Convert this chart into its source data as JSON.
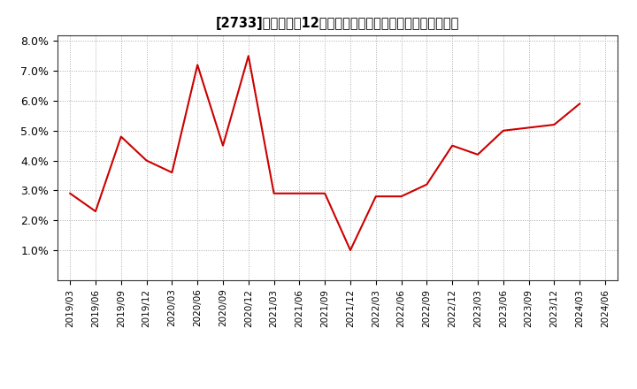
{
  "title": "[2733]　売上高の12か月移動合計の対前年同期増減率の推移",
  "line_color": "#cc0000",
  "background_color": "#ffffff",
  "plot_bg_color": "#ffffff",
  "grid_color": "#aaaaaa",
  "ylim": [
    0.0,
    0.082
  ],
  "yticks": [
    0.01,
    0.02,
    0.03,
    0.04,
    0.05,
    0.06,
    0.07,
    0.08
  ],
  "ytick_labels": [
    "1.0%",
    "2.0%",
    "3.0%",
    "4.0%",
    "5.0%",
    "6.0%",
    "7.0%",
    "8.0%"
  ],
  "dates": [
    "2019/03",
    "2019/06",
    "2019/09",
    "2019/12",
    "2020/03",
    "2020/06",
    "2020/09",
    "2020/12",
    "2021/03",
    "2021/06",
    "2021/09",
    "2021/12",
    "2022/03",
    "2022/06",
    "2022/09",
    "2022/12",
    "2023/03",
    "2023/06",
    "2023/09",
    "2023/12",
    "2024/03",
    "2024/06"
  ],
  "values": [
    0.029,
    0.023,
    0.048,
    0.04,
    0.036,
    0.072,
    0.045,
    0.075,
    0.029,
    0.029,
    0.029,
    0.01,
    0.028,
    0.028,
    0.032,
    0.045,
    0.042,
    0.05,
    0.051,
    0.052,
    0.059,
    null
  ]
}
